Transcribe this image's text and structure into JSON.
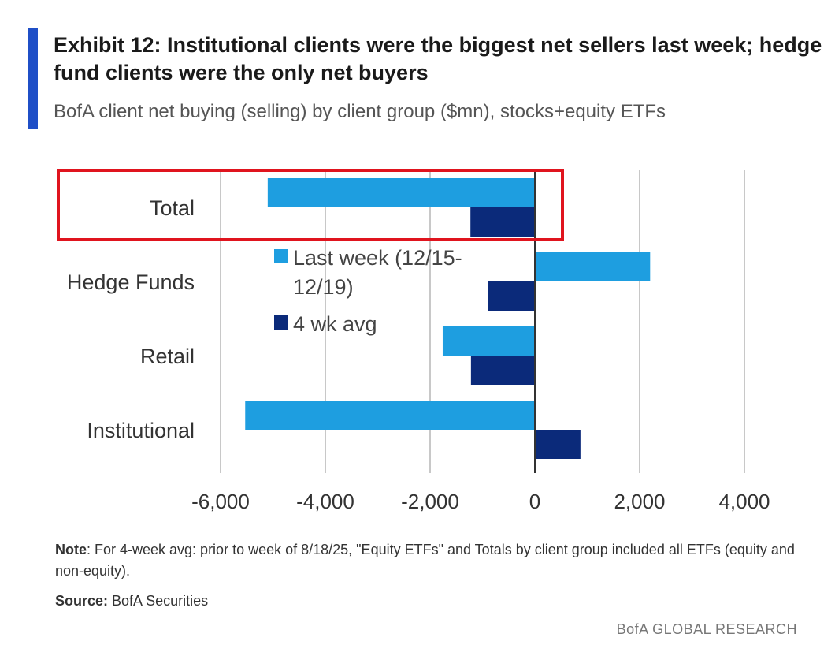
{
  "title": "Exhibit 12: Institutional clients were the biggest net sellers last week; hedge fund clients were the only net buyers",
  "subtitle": "BofA client net buying (selling) by client group ($mn), stocks+equity ETFs",
  "note_label": "Note",
  "note_text": ": For 4-week avg: prior to week of 8/18/25, \"Equity ETFs\" and Totals by client group included all ETFs (equity and non-equity).",
  "source_label": "Source:",
  "source_text": " BofA Securities",
  "brand": "BofA GLOBAL RESEARCH",
  "chart_data": {
    "type": "bar",
    "orientation": "horizontal",
    "categories": [
      "Total",
      "Hedge Funds",
      "Retail",
      "Institutional"
    ],
    "series": [
      {
        "name": "Last week (12/15-12/19)",
        "legend_lines": [
          "Last week (12/15-",
          "12/19)"
        ],
        "color": "#1e9ee0",
        "values": [
          -5100,
          2200,
          -1760,
          -5530
        ]
      },
      {
        "name": "4 wk avg",
        "legend_lines": [
          "4 wk avg"
        ],
        "color": "#0b2a7a",
        "values": [
          -1230,
          -890,
          -1220,
          870
        ]
      }
    ],
    "xlim": [
      -6000,
      4000
    ],
    "xticks": [
      -6000,
      -4000,
      -2000,
      0,
      2000,
      4000
    ],
    "xtick_labels": [
      "-6,000",
      "-4,000",
      "-2,000",
      "0",
      "2,000",
      "4,000"
    ],
    "grid": "vertical",
    "legend_placement": "center-left inside",
    "highlight": {
      "category": "Total",
      "color": "#e0141e"
    }
  }
}
